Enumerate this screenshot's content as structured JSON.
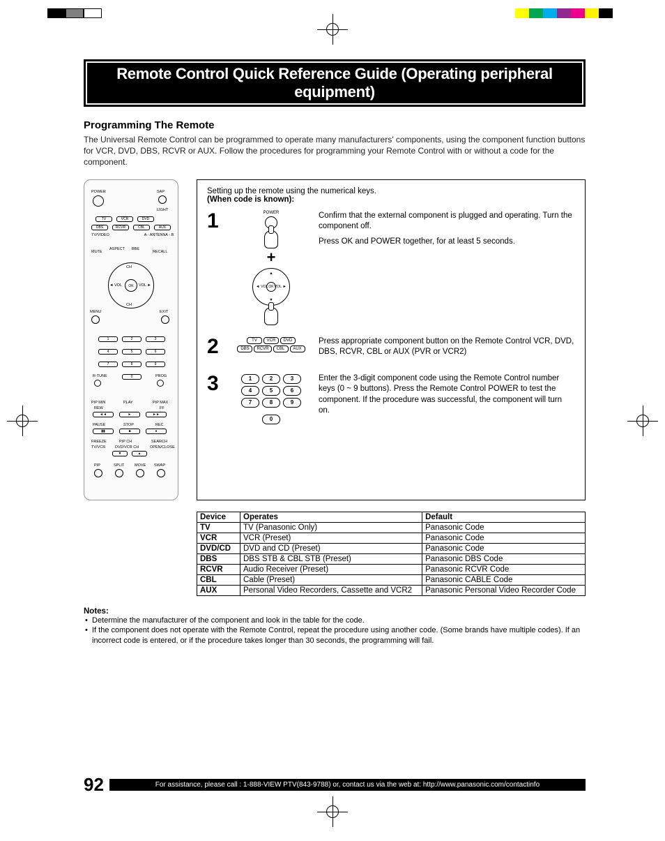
{
  "title_banner": "Remote Control Quick Reference Guide (Operating peripheral equipment)",
  "section_heading": "Programming The Remote",
  "intro": "The Universal Remote Control can be programmed to operate many manufacturers' components, using the component function buttons for VCR, DVD, DBS, RCVR or AUX. Follow the procedures for programming your Remote Control with or without a code for the component.",
  "steps_header_line1": "Setting up the remote using the numerical keys.",
  "steps_header_line2": "(When code is known):",
  "power_label": "POWER",
  "nav": {
    "ok": "OK",
    "ch": "CH",
    "vol_l": "◄ VOL",
    "vol_r": "VOL ►",
    "ch_up": "▲",
    "ch_dn": "▼"
  },
  "component_buttons_row1": [
    "TV",
    "VCR",
    "DVD"
  ],
  "component_buttons_row2": [
    "DBS",
    "RCVR",
    "CBL",
    "AUX"
  ],
  "number_keys": [
    "1",
    "2",
    "3",
    "4",
    "5",
    "6",
    "7",
    "8",
    "9",
    "0"
  ],
  "remote_labels": {
    "power": "POWER",
    "sap": "SAP",
    "light": "LIGHT",
    "tv_video": "TV/VIDEO",
    "antenna": "A - ANTENNA - B",
    "mute": "MUTE",
    "aspect": "ASPECT",
    "bbe": "BBE",
    "recall": "RECALL",
    "menu": "MENU",
    "exit": "EXIT",
    "ok": "OK",
    "ch": "CH",
    "vol": "VOL",
    "rtune": "R-TUNE",
    "prog": "PROG",
    "pip_min": "PIP MIN",
    "play": "PLAY",
    "pip_max": "PIP MAX",
    "rew": "REW",
    "ff": "FF",
    "pause": "PAUSE",
    "stop": "STOP",
    "rec": "REC",
    "freeze": "FREEZE",
    "tv_vcr": "TV/VCR",
    "pip_ch": "PIP CH",
    "dvd_vcr_ch": "DVD/VCR CH",
    "search": "SEARCH",
    "open_close": "OPEN/CLOSE",
    "pip": "PIP",
    "split": "SPLIT",
    "move": "MOVE",
    "swap": "SWAP"
  },
  "steps": [
    {
      "num": "1",
      "text1": "Confirm that the external component is plugged and operating. Turn the component off.",
      "text2": "Press OK and POWER together, for at least 5 seconds."
    },
    {
      "num": "2",
      "text1": "Press appropriate component button on the Remote Control VCR, DVD, DBS, RCVR, CBL or AUX (PVR or VCR2)"
    },
    {
      "num": "3",
      "text1": "Enter the 3-digit component code using the Remote Control number keys (0 ~ 9 buttons). Press the Remote Control POWER to test the component. If the procedure was successful, the component will turn on."
    }
  ],
  "table": {
    "headers": [
      "Device",
      "Operates",
      "Default"
    ],
    "rows": [
      [
        "TV",
        "TV (Panasonic Only)",
        "Panasonic Code"
      ],
      [
        "VCR",
        "VCR (Preset)",
        "Panasonic Code"
      ],
      [
        "DVD/CD",
        "DVD and CD (Preset)",
        "Panasonic Code"
      ],
      [
        "DBS",
        "DBS STB & CBL STB (Preset)",
        "Panasonic DBS Code"
      ],
      [
        "RCVR",
        "Audio Receiver (Preset)",
        "Panasonic RCVR Code"
      ],
      [
        "CBL",
        "Cable (Preset)",
        "Panasonic CABLE Code"
      ],
      [
        "AUX",
        "Personal Video Recorders, Cassette and VCR2",
        "Panasonic Personal Video Recorder Code"
      ]
    ]
  },
  "notes_heading": "Notes:",
  "notes": [
    "Determine the manufacturer of the component and look in the table for the code.",
    "If the component does not operate with the Remote Control, repeat the procedure using another code. (Some brands have multiple codes). If an incorrect code is entered, or if the procedure takes longer than 30 seconds, the programming will fail."
  ],
  "page_number": "92",
  "footer_text": "For assistance, please call : 1-888-VIEW PTV(843-9788) or, contact us via the web at: http://www.panasonic.com/contactinfo",
  "color_bar": [
    "#ffff00",
    "#00a651",
    "#00aeef",
    "#92278f",
    "#ec008c",
    "#fff200",
    "#000000"
  ],
  "gray_bar": [
    "#000000",
    "#808080",
    "#ffffff"
  ]
}
